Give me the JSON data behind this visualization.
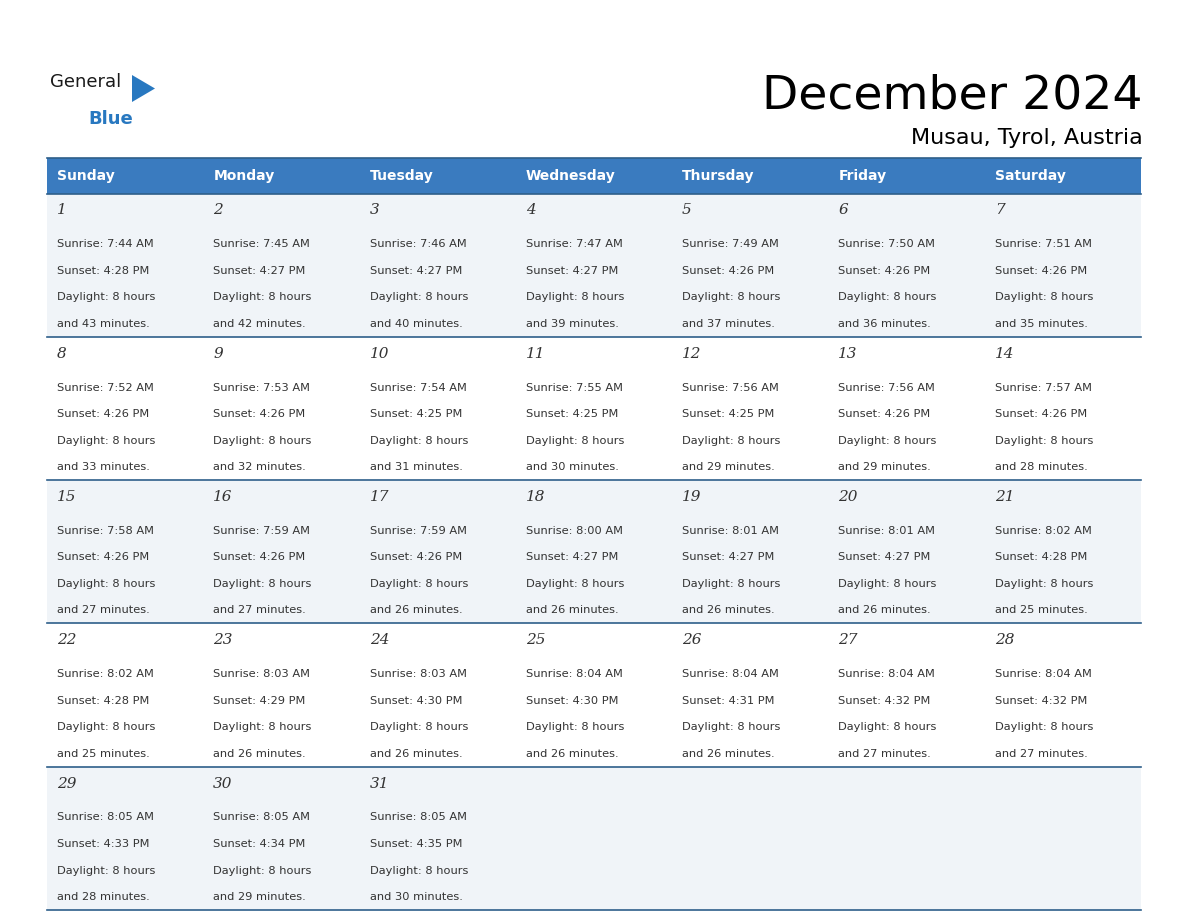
{
  "title": "December 2024",
  "subtitle": "Musau, Tyrol, Austria",
  "header_bg_color": "#3a7bbf",
  "header_text_color": "#FFFFFF",
  "cell_bg_odd": "#f0f4f8",
  "cell_bg_even": "#FFFFFF",
  "border_color": "#2e5f8a",
  "text_color": "#333333",
  "day_names": [
    "Sunday",
    "Monday",
    "Tuesday",
    "Wednesday",
    "Thursday",
    "Friday",
    "Saturday"
  ],
  "days": [
    {
      "day": 1,
      "col": 0,
      "row": 0,
      "sunrise": "7:44 AM",
      "sunset": "4:28 PM",
      "daylight_min": "43"
    },
    {
      "day": 2,
      "col": 1,
      "row": 0,
      "sunrise": "7:45 AM",
      "sunset": "4:27 PM",
      "daylight_min": "42"
    },
    {
      "day": 3,
      "col": 2,
      "row": 0,
      "sunrise": "7:46 AM",
      "sunset": "4:27 PM",
      "daylight_min": "40"
    },
    {
      "day": 4,
      "col": 3,
      "row": 0,
      "sunrise": "7:47 AM",
      "sunset": "4:27 PM",
      "daylight_min": "39"
    },
    {
      "day": 5,
      "col": 4,
      "row": 0,
      "sunrise": "7:49 AM",
      "sunset": "4:26 PM",
      "daylight_min": "37"
    },
    {
      "day": 6,
      "col": 5,
      "row": 0,
      "sunrise": "7:50 AM",
      "sunset": "4:26 PM",
      "daylight_min": "36"
    },
    {
      "day": 7,
      "col": 6,
      "row": 0,
      "sunrise": "7:51 AM",
      "sunset": "4:26 PM",
      "daylight_min": "35"
    },
    {
      "day": 8,
      "col": 0,
      "row": 1,
      "sunrise": "7:52 AM",
      "sunset": "4:26 PM",
      "daylight_min": "33"
    },
    {
      "day": 9,
      "col": 1,
      "row": 1,
      "sunrise": "7:53 AM",
      "sunset": "4:26 PM",
      "daylight_min": "32"
    },
    {
      "day": 10,
      "col": 2,
      "row": 1,
      "sunrise": "7:54 AM",
      "sunset": "4:25 PM",
      "daylight_min": "31"
    },
    {
      "day": 11,
      "col": 3,
      "row": 1,
      "sunrise": "7:55 AM",
      "sunset": "4:25 PM",
      "daylight_min": "30"
    },
    {
      "day": 12,
      "col": 4,
      "row": 1,
      "sunrise": "7:56 AM",
      "sunset": "4:25 PM",
      "daylight_min": "29"
    },
    {
      "day": 13,
      "col": 5,
      "row": 1,
      "sunrise": "7:56 AM",
      "sunset": "4:26 PM",
      "daylight_min": "29"
    },
    {
      "day": 14,
      "col": 6,
      "row": 1,
      "sunrise": "7:57 AM",
      "sunset": "4:26 PM",
      "daylight_min": "28"
    },
    {
      "day": 15,
      "col": 0,
      "row": 2,
      "sunrise": "7:58 AM",
      "sunset": "4:26 PM",
      "daylight_min": "27"
    },
    {
      "day": 16,
      "col": 1,
      "row": 2,
      "sunrise": "7:59 AM",
      "sunset": "4:26 PM",
      "daylight_min": "27"
    },
    {
      "day": 17,
      "col": 2,
      "row": 2,
      "sunrise": "7:59 AM",
      "sunset": "4:26 PM",
      "daylight_min": "26"
    },
    {
      "day": 18,
      "col": 3,
      "row": 2,
      "sunrise": "8:00 AM",
      "sunset": "4:27 PM",
      "daylight_min": "26"
    },
    {
      "day": 19,
      "col": 4,
      "row": 2,
      "sunrise": "8:01 AM",
      "sunset": "4:27 PM",
      "daylight_min": "26"
    },
    {
      "day": 20,
      "col": 5,
      "row": 2,
      "sunrise": "8:01 AM",
      "sunset": "4:27 PM",
      "daylight_min": "26"
    },
    {
      "day": 21,
      "col": 6,
      "row": 2,
      "sunrise": "8:02 AM",
      "sunset": "4:28 PM",
      "daylight_min": "25"
    },
    {
      "day": 22,
      "col": 0,
      "row": 3,
      "sunrise": "8:02 AM",
      "sunset": "4:28 PM",
      "daylight_min": "25"
    },
    {
      "day": 23,
      "col": 1,
      "row": 3,
      "sunrise": "8:03 AM",
      "sunset": "4:29 PM",
      "daylight_min": "26"
    },
    {
      "day": 24,
      "col": 2,
      "row": 3,
      "sunrise": "8:03 AM",
      "sunset": "4:30 PM",
      "daylight_min": "26"
    },
    {
      "day": 25,
      "col": 3,
      "row": 3,
      "sunrise": "8:04 AM",
      "sunset": "4:30 PM",
      "daylight_min": "26"
    },
    {
      "day": 26,
      "col": 4,
      "row": 3,
      "sunrise": "8:04 AM",
      "sunset": "4:31 PM",
      "daylight_min": "26"
    },
    {
      "day": 27,
      "col": 5,
      "row": 3,
      "sunrise": "8:04 AM",
      "sunset": "4:32 PM",
      "daylight_min": "27"
    },
    {
      "day": 28,
      "col": 6,
      "row": 3,
      "sunrise": "8:04 AM",
      "sunset": "4:32 PM",
      "daylight_min": "27"
    },
    {
      "day": 29,
      "col": 0,
      "row": 4,
      "sunrise": "8:05 AM",
      "sunset": "4:33 PM",
      "daylight_min": "28"
    },
    {
      "day": 30,
      "col": 1,
      "row": 4,
      "sunrise": "8:05 AM",
      "sunset": "4:34 PM",
      "daylight_min": "29"
    },
    {
      "day": 31,
      "col": 2,
      "row": 4,
      "sunrise": "8:05 AM",
      "sunset": "4:35 PM",
      "daylight_min": "30"
    }
  ],
  "fig_width": 11.88,
  "fig_height": 9.18,
  "dpi": 100
}
